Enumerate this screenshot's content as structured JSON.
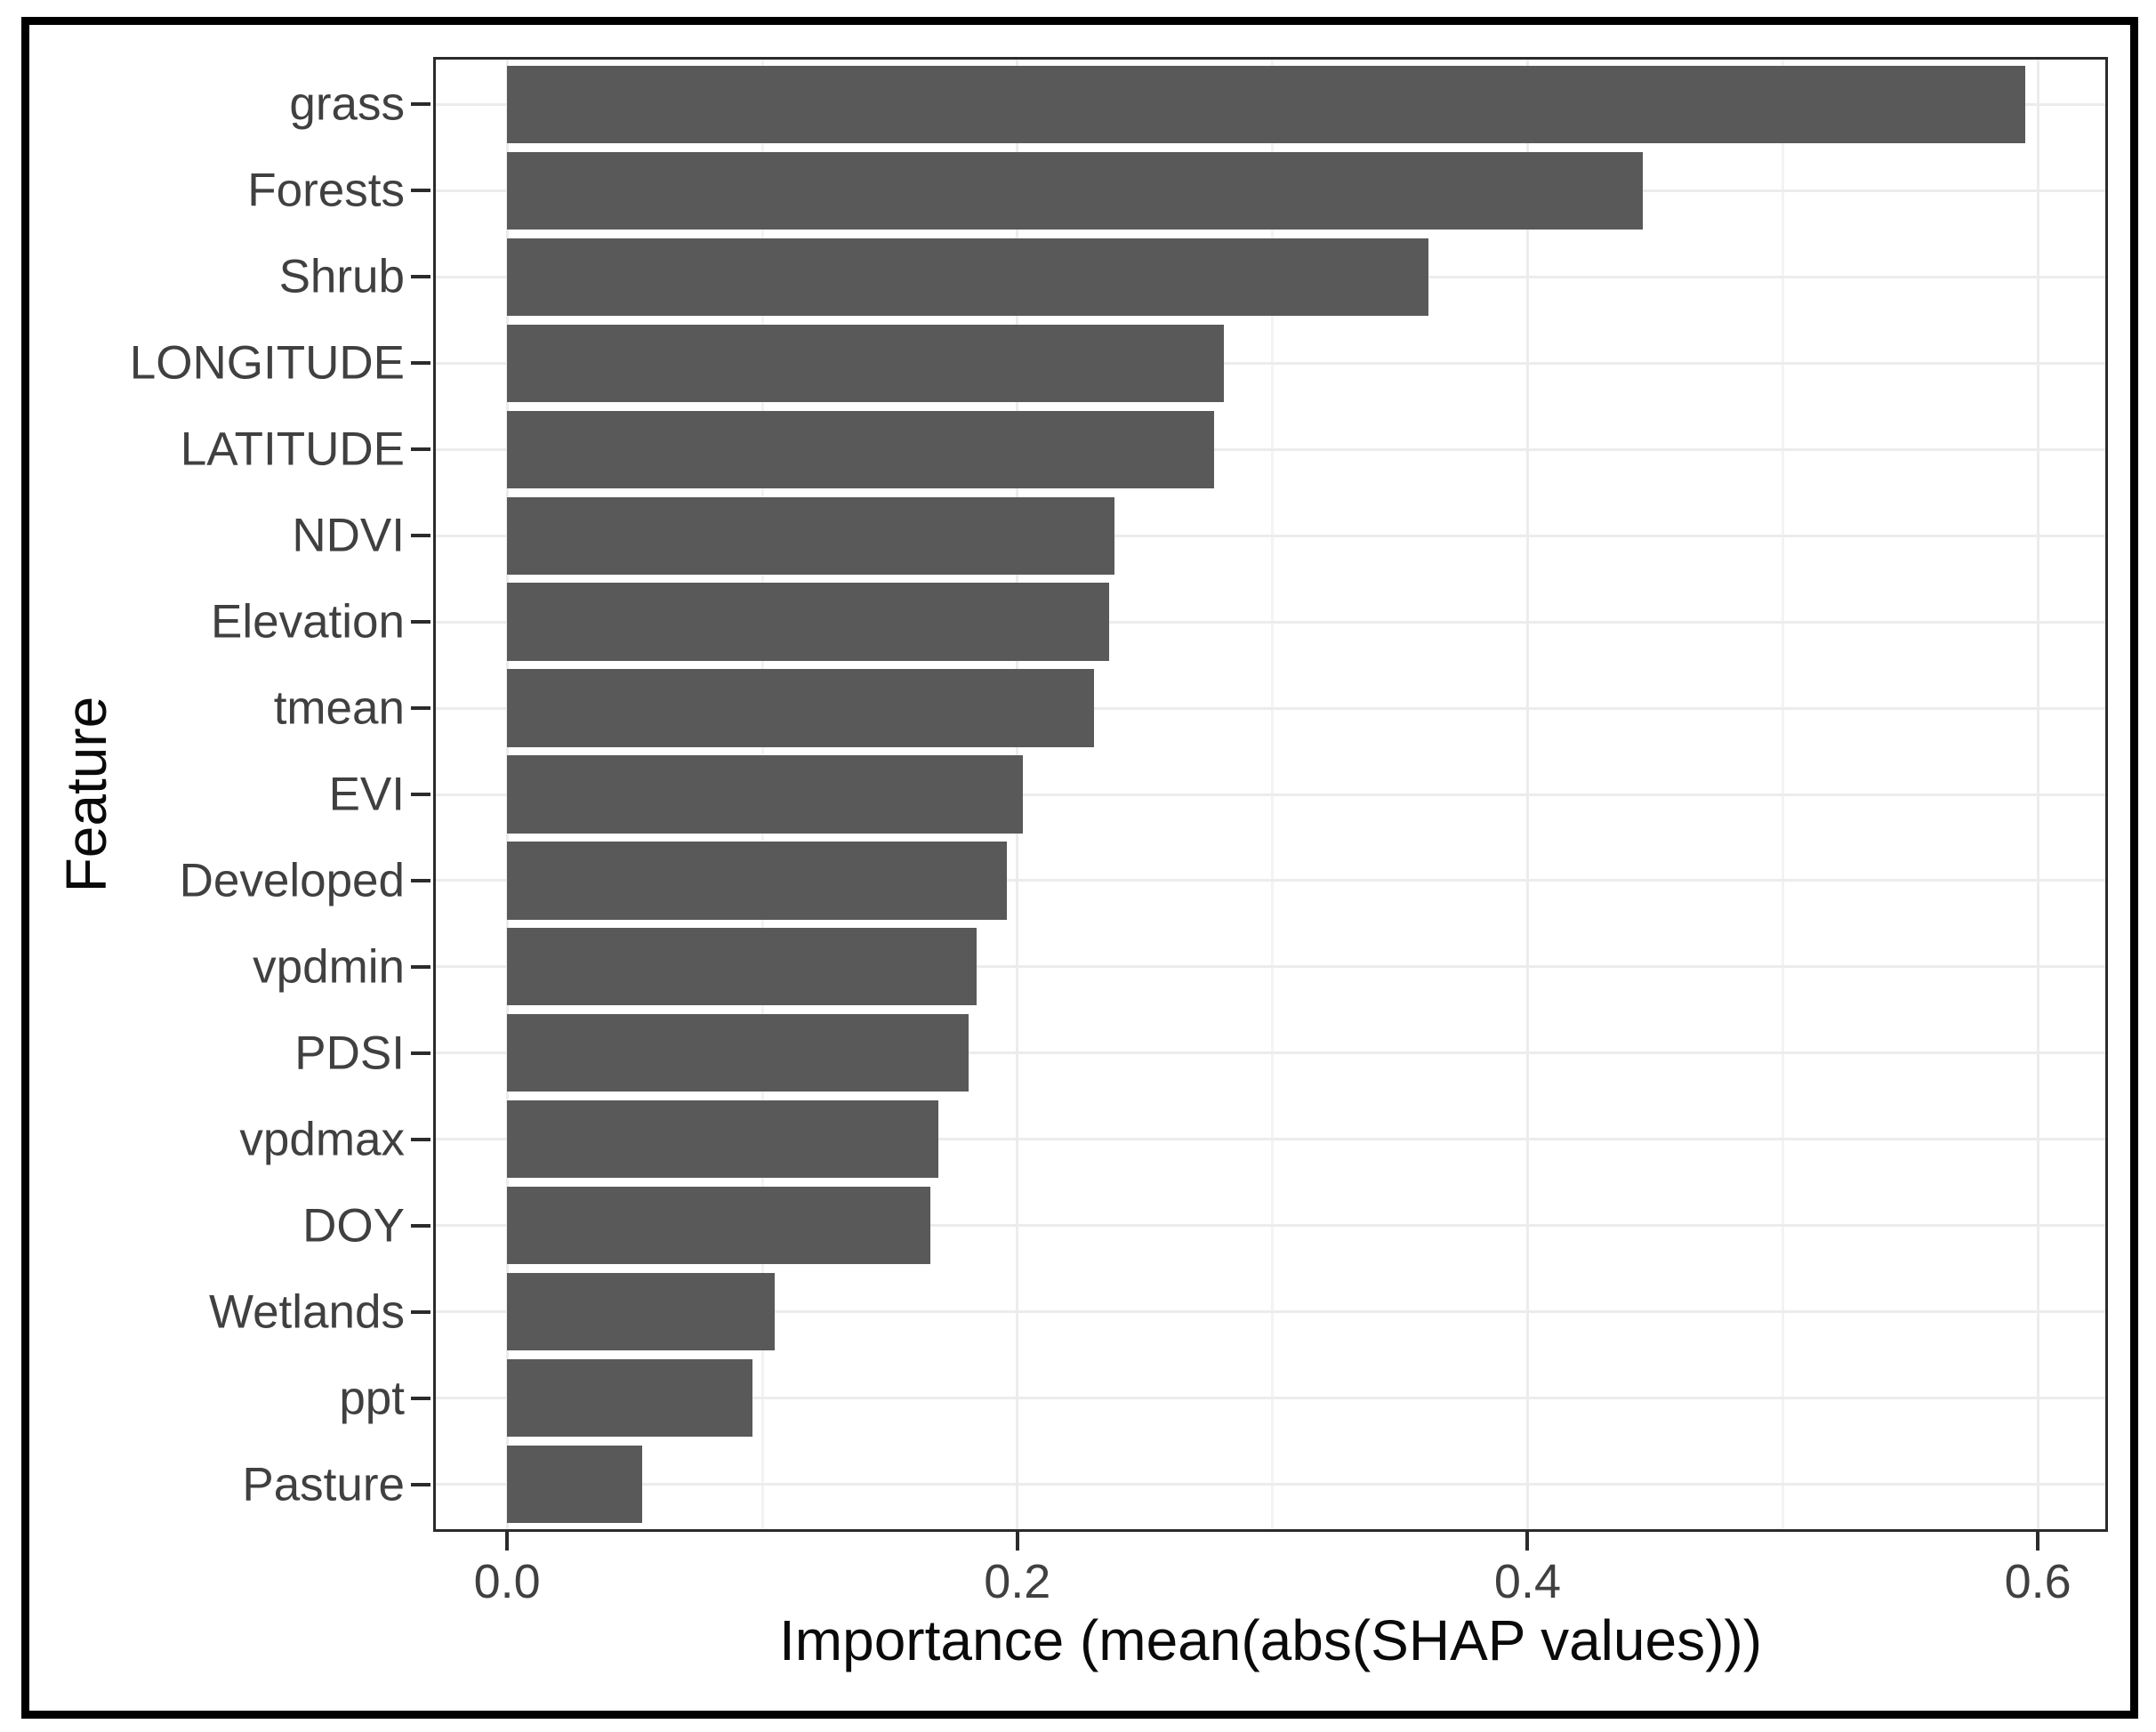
{
  "chart_data": {
    "type": "bar",
    "orientation": "horizontal",
    "title": "",
    "xlabel": "Importance (mean(abs(SHAP values)))",
    "ylabel": "Feature",
    "categories": [
      "grass",
      "Forests",
      "Shrub",
      "LONGITUDE",
      "LATITUDE",
      "NDVI",
      "Elevation",
      "tmean",
      "EVI",
      "Developed",
      "vpdmin",
      "PDSI",
      "vpdmax",
      "DOY",
      "Wetlands",
      "ppt",
      "Pasture"
    ],
    "values": [
      0.595,
      0.445,
      0.361,
      0.281,
      0.277,
      0.238,
      0.236,
      0.23,
      0.202,
      0.196,
      0.184,
      0.181,
      0.169,
      0.166,
      0.105,
      0.096,
      0.053
    ],
    "x_ticks": [
      {
        "value": 0.0,
        "label": "0.0"
      },
      {
        "value": 0.2,
        "label": "0.2"
      },
      {
        "value": 0.4,
        "label": "0.4"
      },
      {
        "value": 0.6,
        "label": "0.6"
      }
    ],
    "x_minor_gridlines": [
      0.1,
      0.3,
      0.5
    ],
    "xlim": [
      -0.029,
      0.6275
    ],
    "grid": true,
    "legend": false
  },
  "style": {
    "bar_color": "#595959",
    "axis_text_color": "#404040",
    "title_color": "#0a0a0a",
    "grid_major_color": "#ececec",
    "grid_minor_color": "#f3f3f3",
    "panel_border_color": "#2b2b2b",
    "tick_color": "#2b2b2b",
    "frame_color": "#000000",
    "background_color": "#ffffff"
  }
}
